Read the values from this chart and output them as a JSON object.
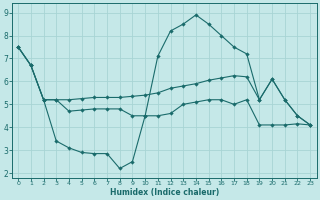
{
  "xlabel": "Humidex (Indice chaleur)",
  "background_color": "#c5e8e8",
  "grid_color": "#a8d4d4",
  "line_color": "#1a6b6b",
  "xlim": [
    -0.5,
    23.5
  ],
  "ylim": [
    1.8,
    9.4
  ],
  "xticks": [
    0,
    1,
    2,
    3,
    4,
    5,
    6,
    7,
    8,
    9,
    10,
    11,
    12,
    13,
    14,
    15,
    16,
    17,
    18,
    19,
    20,
    21,
    22,
    23
  ],
  "yticks": [
    2,
    3,
    4,
    5,
    6,
    7,
    8,
    9
  ],
  "line1_x": [
    0,
    1,
    2,
    3,
    4,
    5,
    6,
    7,
    8,
    9,
    10,
    11,
    12,
    13,
    14,
    15,
    16,
    17,
    18,
    19,
    20,
    21,
    22,
    23
  ],
  "line1_y": [
    7.5,
    6.7,
    5.2,
    5.2,
    4.7,
    4.75,
    4.8,
    4.8,
    4.8,
    4.5,
    4.5,
    4.5,
    4.6,
    5.0,
    5.1,
    5.2,
    5.2,
    5.0,
    5.2,
    4.1,
    4.1,
    4.1,
    4.15,
    4.1
  ],
  "line2_x": [
    0,
    1,
    2,
    3,
    4,
    5,
    6,
    7,
    8,
    9,
    10,
    11,
    12,
    13,
    14,
    15,
    16,
    17,
    18,
    19,
    20,
    21,
    22,
    23
  ],
  "line2_y": [
    7.5,
    6.7,
    5.2,
    3.4,
    3.1,
    2.9,
    2.85,
    2.85,
    2.2,
    2.5,
    4.5,
    7.1,
    8.2,
    8.5,
    8.9,
    8.5,
    8.0,
    7.5,
    7.2,
    5.2,
    6.1,
    5.2,
    4.5,
    4.1
  ],
  "line3_x": [
    0,
    1,
    2,
    3,
    4,
    5,
    6,
    7,
    8,
    9,
    10,
    11,
    12,
    13,
    14,
    15,
    16,
    17,
    18,
    19,
    20,
    21,
    22,
    23
  ],
  "line3_y": [
    7.5,
    6.7,
    5.2,
    5.2,
    5.2,
    5.25,
    5.3,
    5.3,
    5.3,
    5.35,
    5.4,
    5.5,
    5.7,
    5.8,
    5.9,
    6.05,
    6.15,
    6.25,
    6.2,
    5.2,
    6.1,
    5.2,
    4.5,
    4.1
  ]
}
